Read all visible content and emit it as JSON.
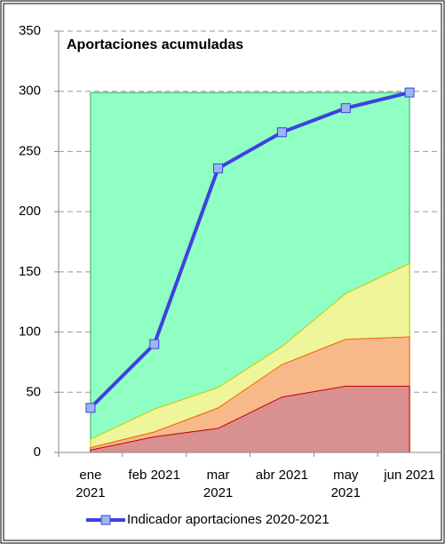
{
  "chart_data": {
    "type": "area-line",
    "title": "Aportaciones acumuladas",
    "categories": [
      "ene 2021",
      "feb 2021",
      "mar 2021",
      "abr 2021",
      "may 2021",
      "jun 2021"
    ],
    "areas": [
      {
        "color": "#8fffc4",
        "edge": "#33aa55",
        "values": [
          299,
          299,
          299,
          299,
          299,
          299
        ]
      },
      {
        "color": "#eef59a",
        "edge": "#c8c800",
        "values": [
          11,
          36,
          54,
          88,
          132,
          157
        ]
      },
      {
        "color": "#f8b98a",
        "edge": "#f06000",
        "values": [
          4,
          17,
          37,
          73,
          94,
          96
        ]
      },
      {
        "color": "#d99090",
        "edge": "#c00000",
        "values": [
          2,
          13,
          20,
          46,
          55,
          55
        ]
      }
    ],
    "series": [
      {
        "name": "Indicador aportaciones 2020-2021",
        "color": "#4040e0",
        "marker_color": "#9ab8f0",
        "values": [
          37,
          90,
          236,
          266,
          286,
          299
        ]
      }
    ],
    "ylim": [
      0,
      350
    ],
    "yticks": [
      0,
      50,
      100,
      150,
      200,
      250,
      300,
      350
    ],
    "grid": true
  }
}
